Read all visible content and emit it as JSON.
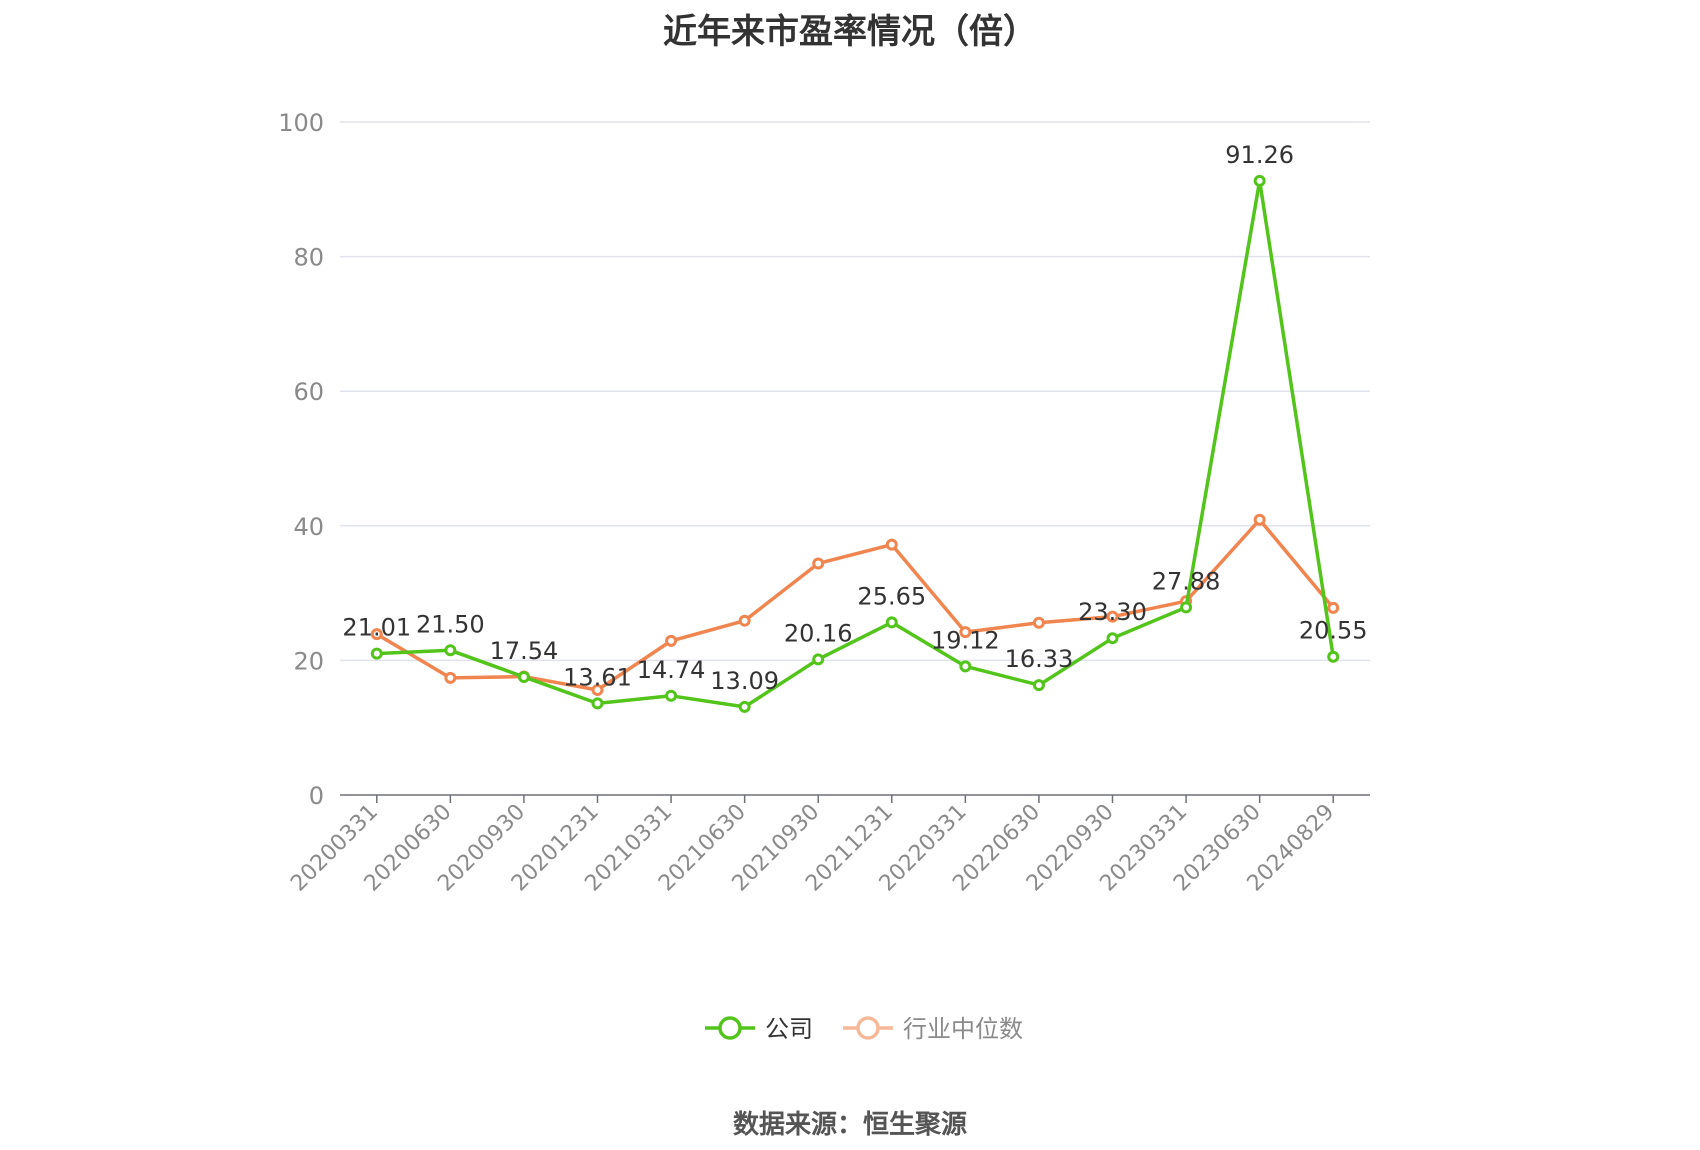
{
  "chart_data": {
    "type": "line",
    "title": "近年来市盈率情况（倍）",
    "categories": [
      "20200331",
      "20200630",
      "20200930",
      "20201231",
      "20210331",
      "20210630",
      "20210930",
      "20211231",
      "20220331",
      "20220630",
      "20220930",
      "20230331",
      "20230630",
      "20240829"
    ],
    "ylim": [
      0,
      100
    ],
    "yticks": [
      0,
      20,
      40,
      60,
      80,
      100
    ],
    "grid": true,
    "legend_position": "bottom-center",
    "series": [
      {
        "name": "公司",
        "color": "#52c41a",
        "values": [
          21.01,
          21.5,
          17.54,
          13.61,
          14.74,
          13.09,
          20.16,
          25.65,
          19.12,
          16.33,
          23.3,
          27.88,
          91.26,
          20.55
        ],
        "labels": [
          "21.01",
          "21.50",
          "17.54",
          "13.61",
          "14.74",
          "13.09",
          "20.16",
          "25.65",
          "19.12",
          "16.33",
          "23.30",
          "27.88",
          "91.26",
          "20.55"
        ]
      },
      {
        "name": "行业中位数",
        "color": "#f0854f",
        "values": [
          23.9,
          17.4,
          17.6,
          15.6,
          22.9,
          25.9,
          34.4,
          37.2,
          24.2,
          25.6,
          26.5,
          28.8,
          40.9,
          27.8
        ]
      }
    ]
  },
  "footer": {
    "source": "数据来源：恒生聚源"
  }
}
